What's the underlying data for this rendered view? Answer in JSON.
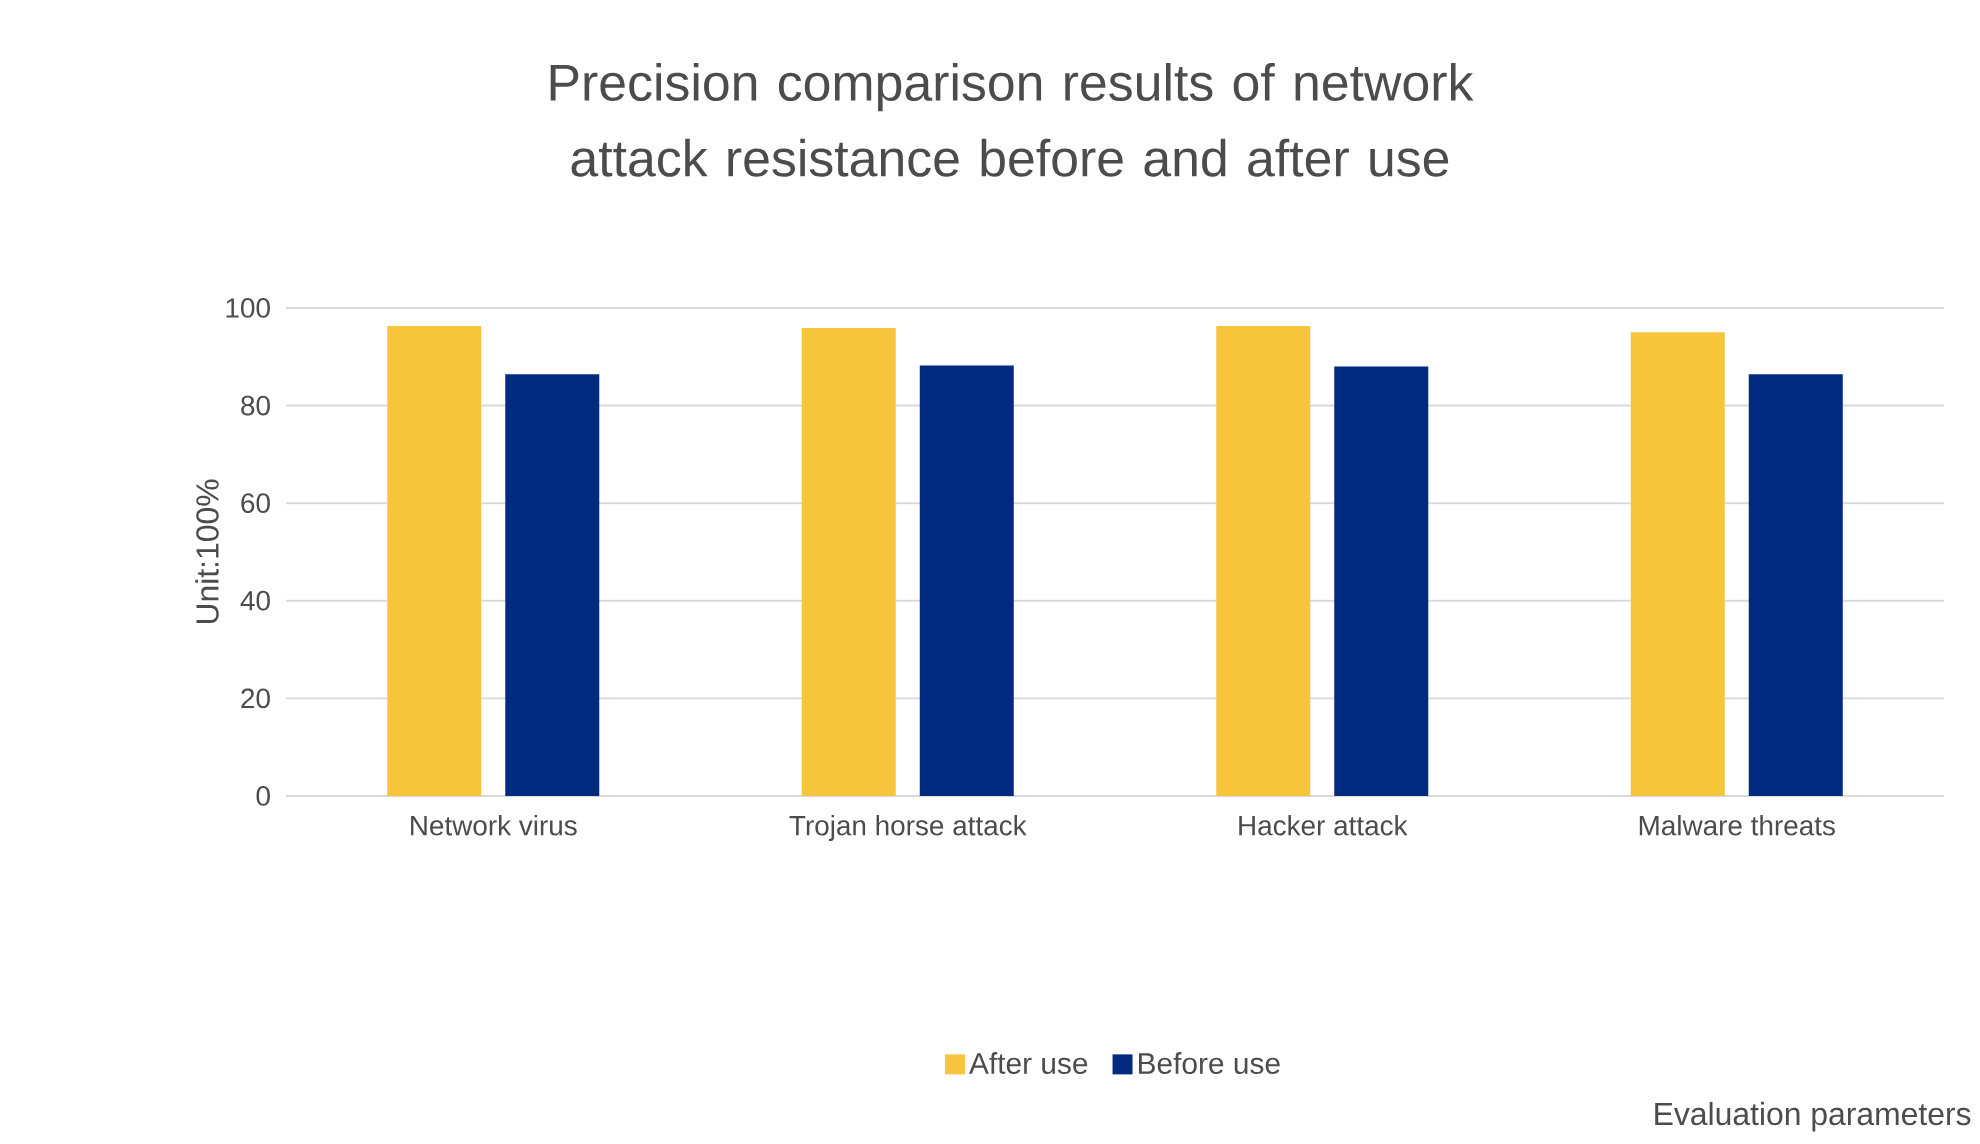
{
  "chart_data": {
    "type": "bar",
    "title": "Precision comparison results of network attack resistance before and after use",
    "annotations": [
      "Evaluation parameters"
    ],
    "ylabel": "Unit:100%",
    "categories": [
      "Network virus",
      "Trojan horse attack",
      "Hacker attack",
      "Malware threats"
    ],
    "series": [
      {
        "name": "After use",
        "color": "#f7c53c",
        "values": [
          96.3,
          95.9,
          96.3,
          95
        ]
      },
      {
        "name": "Before use",
        "color": "#002a80",
        "values": [
          86.4,
          88.2,
          88,
          86.4
        ]
      }
    ],
    "ylim": [
      0,
      100
    ],
    "yticks": [
      0,
      20,
      40,
      60,
      80,
      100
    ],
    "grid": "y",
    "legend": "bottom"
  }
}
